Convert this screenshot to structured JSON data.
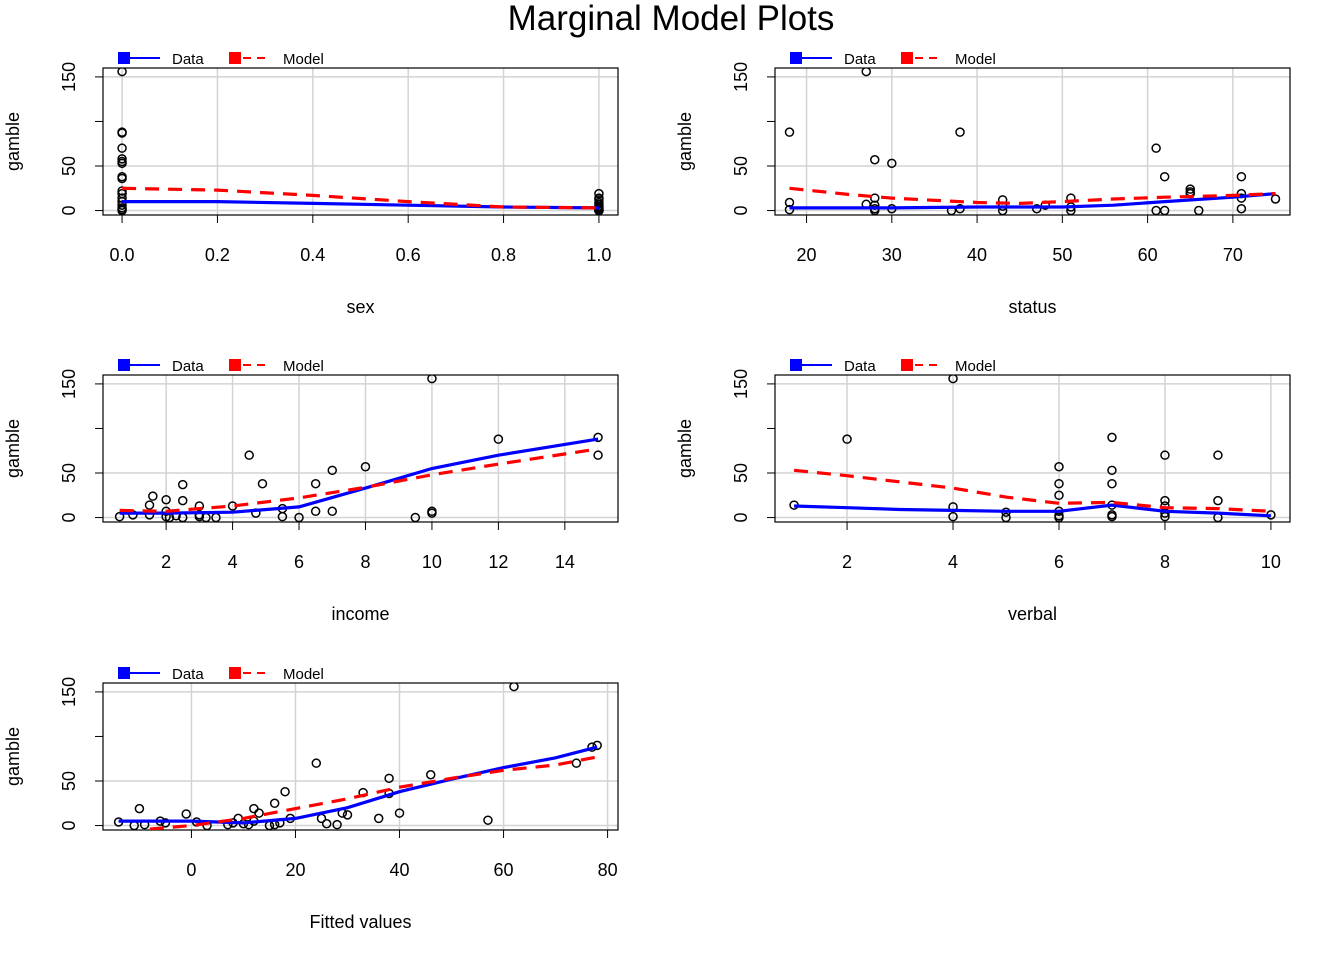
{
  "figure": {
    "title": "Marginal Model Plots"
  },
  "legend": {
    "data_label": "Data",
    "model_label": "Model",
    "data_color": "#0000ff",
    "model_color": "#ff0000"
  },
  "chart_data": [
    {
      "type": "scatter",
      "xlabel": "sex",
      "ylabel": "gamble",
      "xlim": [
        -0.04,
        1.04
      ],
      "ylim": [
        -5,
        160
      ],
      "xticks": [
        0.0,
        0.2,
        0.4,
        0.6,
        0.8,
        1.0
      ],
      "xtick_labels": [
        "0.0",
        "0.2",
        "0.4",
        "0.6",
        "0.8",
        "1.0"
      ],
      "yticks": [
        0,
        50,
        150
      ],
      "grid": true,
      "points": [
        [
          0,
          156
        ],
        [
          0,
          88
        ],
        [
          0,
          87
        ],
        [
          0,
          70
        ],
        [
          0,
          58
        ],
        [
          0,
          55
        ],
        [
          0,
          53
        ],
        [
          0,
          38
        ],
        [
          0,
          36
        ],
        [
          0,
          22
        ],
        [
          0,
          19
        ],
        [
          0,
          14
        ],
        [
          0,
          10
        ],
        [
          0,
          6
        ],
        [
          0,
          3
        ],
        [
          0,
          1
        ],
        [
          0,
          0
        ],
        [
          1,
          19
        ],
        [
          1,
          14
        ],
        [
          1,
          12
        ],
        [
          1,
          9
        ],
        [
          1,
          7
        ],
        [
          1,
          5
        ],
        [
          1,
          4
        ],
        [
          1,
          3
        ],
        [
          1,
          2
        ],
        [
          1,
          1
        ],
        [
          1,
          0
        ],
        [
          1,
          0
        ],
        [
          1,
          0
        ],
        [
          1,
          0
        ]
      ],
      "series": [
        {
          "name": "Data",
          "values": [
            [
              0,
              10
            ],
            [
              0.2,
              10
            ],
            [
              0.4,
              8
            ],
            [
              0.6,
              6
            ],
            [
              0.8,
              4
            ],
            [
              1,
              3
            ]
          ]
        },
        {
          "name": "Model",
          "values": [
            [
              0,
              25
            ],
            [
              0.2,
              23
            ],
            [
              0.4,
              17
            ],
            [
              0.6,
              10
            ],
            [
              0.8,
              4
            ],
            [
              1,
              3
            ]
          ]
        }
      ]
    },
    {
      "type": "scatter",
      "xlabel": "status",
      "ylabel": "gamble",
      "xlim": [
        16.3,
        76.7
      ],
      "ylim": [
        -5,
        160
      ],
      "xticks": [
        20,
        30,
        40,
        50,
        60,
        70
      ],
      "xtick_labels": [
        "20",
        "30",
        "40",
        "50",
        "60",
        "70"
      ],
      "yticks": [
        0,
        50,
        150
      ],
      "grid": true,
      "points": [
        [
          18,
          88
        ],
        [
          18,
          9
        ],
        [
          18,
          1
        ],
        [
          27,
          156
        ],
        [
          27,
          7
        ],
        [
          28,
          57
        ],
        [
          28,
          14
        ],
        [
          28,
          6
        ],
        [
          28,
          2
        ],
        [
          28,
          0
        ],
        [
          30,
          53
        ],
        [
          30,
          2
        ],
        [
          37,
          0
        ],
        [
          38,
          88
        ],
        [
          38,
          2
        ],
        [
          43,
          12
        ],
        [
          43,
          5
        ],
        [
          43,
          0
        ],
        [
          47,
          2
        ],
        [
          48,
          6
        ],
        [
          51,
          14
        ],
        [
          51,
          4
        ],
        [
          51,
          0
        ],
        [
          61,
          70
        ],
        [
          61,
          0
        ],
        [
          62,
          38
        ],
        [
          62,
          0
        ],
        [
          65,
          24
        ],
        [
          65,
          21
        ],
        [
          65,
          19
        ],
        [
          66,
          0
        ],
        [
          71,
          38
        ],
        [
          71,
          19
        ],
        [
          71,
          14
        ],
        [
          71,
          2
        ],
        [
          75,
          13
        ]
      ],
      "series": [
        {
          "name": "Data",
          "values": [
            [
              18,
              3
            ],
            [
              30,
              3
            ],
            [
              40,
              4
            ],
            [
              50,
              4
            ],
            [
              56,
              6
            ],
            [
              62,
              10
            ],
            [
              70,
              15
            ],
            [
              75,
              19
            ]
          ]
        },
        {
          "name": "Model",
          "values": [
            [
              18,
              25
            ],
            [
              25,
              18
            ],
            [
              30,
              14
            ],
            [
              40,
              9
            ],
            [
              45,
              8
            ],
            [
              50,
              10
            ],
            [
              56,
              13
            ],
            [
              62,
              15
            ],
            [
              70,
              17
            ],
            [
              75,
              19
            ]
          ]
        }
      ]
    },
    {
      "type": "scatter",
      "xlabel": "income",
      "ylabel": "gamble",
      "xlim": [
        0.1,
        15.6
      ],
      "ylim": [
        -5,
        160
      ],
      "xticks": [
        2,
        4,
        6,
        8,
        10,
        12,
        14
      ],
      "xtick_labels": [
        "2",
        "4",
        "6",
        "8",
        "10",
        "12",
        "14"
      ],
      "yticks": [
        0,
        50,
        150
      ],
      "grid": true,
      "points": [
        [
          0.6,
          1
        ],
        [
          1,
          3
        ],
        [
          1.5,
          3
        ],
        [
          1.5,
          14
        ],
        [
          1.6,
          24
        ],
        [
          2,
          20
        ],
        [
          2,
          7
        ],
        [
          2,
          1
        ],
        [
          2.1,
          0
        ],
        [
          2.3,
          2
        ],
        [
          2.5,
          37
        ],
        [
          2.5,
          19
        ],
        [
          2.5,
          0
        ],
        [
          3,
          13
        ],
        [
          3,
          3
        ],
        [
          3,
          1
        ],
        [
          3.2,
          0
        ],
        [
          3.5,
          0
        ],
        [
          4,
          13
        ],
        [
          4.5,
          70
        ],
        [
          4.7,
          5
        ],
        [
          4.9,
          38
        ],
        [
          5.5,
          10
        ],
        [
          5.5,
          1
        ],
        [
          6,
          0
        ],
        [
          6.5,
          7
        ],
        [
          6.5,
          38
        ],
        [
          7,
          53
        ],
        [
          7,
          7
        ],
        [
          8,
          57
        ],
        [
          9.5,
          0
        ],
        [
          10,
          156
        ],
        [
          10,
          7
        ],
        [
          10,
          5
        ],
        [
          12,
          88
        ],
        [
          15,
          90
        ],
        [
          15,
          70
        ]
      ],
      "series": [
        {
          "name": "Data",
          "values": [
            [
              0.6,
              5
            ],
            [
              2,
              5
            ],
            [
              4,
              6
            ],
            [
              6,
              12
            ],
            [
              8,
              33
            ],
            [
              10,
              55
            ],
            [
              12,
              70
            ],
            [
              15,
              88
            ]
          ]
        },
        {
          "name": "Model",
          "values": [
            [
              0.6,
              8
            ],
            [
              2,
              7
            ],
            [
              4,
              13
            ],
            [
              6,
              22
            ],
            [
              8,
              34
            ],
            [
              10,
              48
            ],
            [
              12,
              60
            ],
            [
              15,
              77
            ]
          ]
        }
      ]
    },
    {
      "type": "scatter",
      "xlabel": "verbal",
      "ylabel": "gamble",
      "xlim": [
        0.64,
        10.36
      ],
      "ylim": [
        -5,
        160
      ],
      "xticks": [
        2,
        4,
        6,
        8,
        10
      ],
      "xtick_labels": [
        "2",
        "4",
        "6",
        "8",
        "10"
      ],
      "yticks": [
        0,
        50,
        150
      ],
      "grid": true,
      "points": [
        [
          1,
          14
        ],
        [
          2,
          88
        ],
        [
          4,
          156
        ],
        [
          4,
          12
        ],
        [
          4,
          1
        ],
        [
          5,
          6
        ],
        [
          5,
          0
        ],
        [
          6,
          57
        ],
        [
          6,
          38
        ],
        [
          6,
          25
        ],
        [
          6,
          7
        ],
        [
          6,
          2
        ],
        [
          6,
          0
        ],
        [
          7,
          90
        ],
        [
          7,
          53
        ],
        [
          7,
          38
        ],
        [
          7,
          14
        ],
        [
          7,
          3
        ],
        [
          7,
          1
        ],
        [
          8,
          70
        ],
        [
          8,
          19
        ],
        [
          8,
          13
        ],
        [
          8,
          5
        ],
        [
          8,
          1
        ],
        [
          9,
          70
        ],
        [
          9,
          19
        ],
        [
          9,
          0
        ],
        [
          10,
          3
        ]
      ],
      "series": [
        {
          "name": "Data",
          "values": [
            [
              1,
              13
            ],
            [
              2,
              11
            ],
            [
              3,
              9
            ],
            [
              4,
              8
            ],
            [
              5,
              7
            ],
            [
              6,
              7
            ],
            [
              7,
              14
            ],
            [
              8,
              7
            ],
            [
              9,
              5
            ],
            [
              10,
              2
            ]
          ]
        },
        {
          "name": "Model",
          "values": [
            [
              1,
              53
            ],
            [
              2,
              47
            ],
            [
              3,
              40
            ],
            [
              4,
              33
            ],
            [
              5,
              23
            ],
            [
              6,
              16
            ],
            [
              7,
              17
            ],
            [
              8,
              11
            ],
            [
              9,
              10
            ],
            [
              10,
              7
            ]
          ]
        }
      ]
    },
    {
      "type": "scatter",
      "xlabel": "Fitted values",
      "ylabel": "gamble",
      "xlim": [
        -17,
        82
      ],
      "ylim": [
        -5,
        160
      ],
      "xticks": [
        0,
        20,
        40,
        60,
        80
      ],
      "xtick_labels": [
        "0",
        "20",
        "40",
        "60",
        "80"
      ],
      "yticks": [
        0,
        50,
        150
      ],
      "grid": true,
      "points": [
        [
          -14,
          4
        ],
        [
          -11,
          0
        ],
        [
          -10,
          19
        ],
        [
          -9,
          1
        ],
        [
          -6,
          5
        ],
        [
          -5,
          3
        ],
        [
          -1,
          13
        ],
        [
          1,
          4
        ],
        [
          3,
          0
        ],
        [
          7,
          1
        ],
        [
          8,
          3
        ],
        [
          9,
          8
        ],
        [
          10,
          2
        ],
        [
          11,
          1
        ],
        [
          12,
          19
        ],
        [
          12,
          5
        ],
        [
          13,
          14
        ],
        [
          15,
          0
        ],
        [
          16,
          25
        ],
        [
          16,
          1
        ],
        [
          17,
          3
        ],
        [
          18,
          38
        ],
        [
          19,
          8
        ],
        [
          24,
          70
        ],
        [
          25,
          8
        ],
        [
          26,
          2
        ],
        [
          28,
          1
        ],
        [
          29,
          14
        ],
        [
          30,
          12
        ],
        [
          33,
          37
        ],
        [
          36,
          8
        ],
        [
          38,
          53
        ],
        [
          38,
          36
        ],
        [
          40,
          14
        ],
        [
          46,
          57
        ],
        [
          57,
          6
        ],
        [
          62,
          156
        ],
        [
          74,
          70
        ],
        [
          77,
          88
        ],
        [
          78,
          90
        ]
      ],
      "series": [
        {
          "name": "Data",
          "values": [
            [
              -14,
              5
            ],
            [
              0,
              5
            ],
            [
              10,
              3
            ],
            [
              20,
              8
            ],
            [
              30,
              20
            ],
            [
              40,
              38
            ],
            [
              50,
              52
            ],
            [
              60,
              65
            ],
            [
              70,
              76
            ],
            [
              78,
              88
            ]
          ]
        },
        {
          "name": "Model",
          "values": [
            [
              -8,
              -4
            ],
            [
              0,
              0
            ],
            [
              10,
              8
            ],
            [
              20,
              19
            ],
            [
              30,
              30
            ],
            [
              40,
              43
            ],
            [
              50,
              53
            ],
            [
              60,
              62
            ],
            [
              70,
              68
            ],
            [
              78,
              77
            ]
          ]
        }
      ]
    }
  ]
}
